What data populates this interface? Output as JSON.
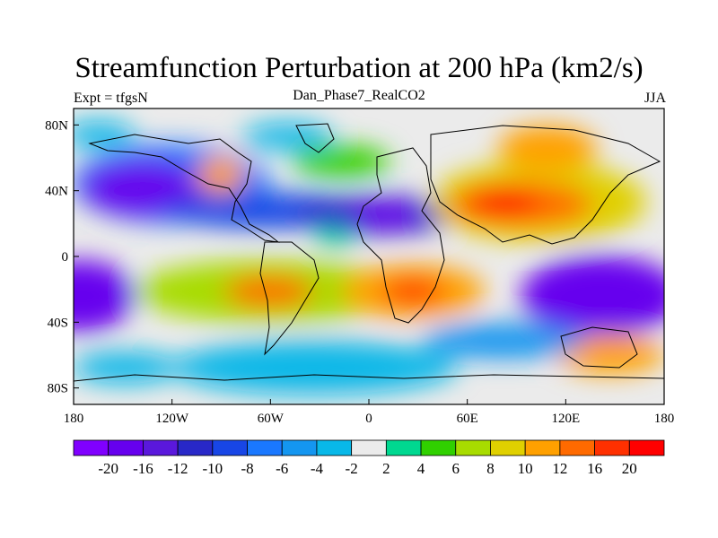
{
  "title": "Streamfunction Perturbation at 200 hPa (km2/s)",
  "left_string": "Expt = tfgsN",
  "center_string": "Dan_Phase7_RealCO2",
  "right_string": "JJA",
  "map": {
    "lat_range": [
      -90,
      90
    ],
    "lon_range": [
      -180,
      180
    ],
    "lat_ticks": [
      {
        "value": 80,
        "label": "80N"
      },
      {
        "value": 40,
        "label": "40N"
      },
      {
        "value": 0,
        "label": "0"
      },
      {
        "value": -40,
        "label": "40S"
      },
      {
        "value": -80,
        "label": "80S"
      }
    ],
    "lon_ticks": [
      {
        "value": -180,
        "label": "180"
      },
      {
        "value": -120,
        "label": "120W"
      },
      {
        "value": -60,
        "label": "60W"
      },
      {
        "value": 0,
        "label": "0"
      },
      {
        "value": 60,
        "label": "60E"
      },
      {
        "value": 120,
        "label": "120E"
      },
      {
        "value": 180,
        "label": "180"
      }
    ],
    "field_centers": [
      {
        "lon": -140,
        "lat": 35,
        "value": -20
      },
      {
        "lon": -100,
        "lat": 45,
        "value": -12
      },
      {
        "lon": -80,
        "lat": 50,
        "value": 12
      },
      {
        "lon": -60,
        "lat": 30,
        "value": -10
      },
      {
        "lon": -5,
        "lat": 30,
        "value": -16
      },
      {
        "lon": 30,
        "lat": 28,
        "value": -10
      },
      {
        "lon": 75,
        "lat": 35,
        "value": 20
      },
      {
        "lon": 115,
        "lat": 30,
        "value": 16
      },
      {
        "lon": 100,
        "lat": 65,
        "value": 12
      },
      {
        "lon": -90,
        "lat": -20,
        "value": 8
      },
      {
        "lon": -55,
        "lat": -22,
        "value": 16
      },
      {
        "lon": 5,
        "lat": -20,
        "value": 12
      },
      {
        "lon": 20,
        "lat": -22,
        "value": 20
      },
      {
        "lon": -175,
        "lat": -22,
        "value": -20
      },
      {
        "lon": 150,
        "lat": -20,
        "value": -20
      },
      {
        "lon": 165,
        "lat": -50,
        "value": 12
      },
      {
        "lon": -30,
        "lat": -65,
        "value": -6
      },
      {
        "lon": 45,
        "lat": -55,
        "value": -6
      }
    ]
  },
  "colorbar": {
    "colors": [
      "#8000ff",
      "#6600ee",
      "#5a18dc",
      "#2828c8",
      "#1846e6",
      "#1a78ff",
      "#1496f0",
      "#08b8e8",
      "#ebebeb",
      "#00d890",
      "#30d000",
      "#a8dc00",
      "#e0d000",
      "#ffa000",
      "#ff6a00",
      "#ff3000",
      "#ff0000"
    ],
    "labels": [
      "-20",
      "-16",
      "-12",
      "-10",
      "-8",
      "-6",
      "-4",
      "-2",
      "2",
      "4",
      "6",
      "8",
      "10",
      "12",
      "16",
      "20"
    ]
  }
}
